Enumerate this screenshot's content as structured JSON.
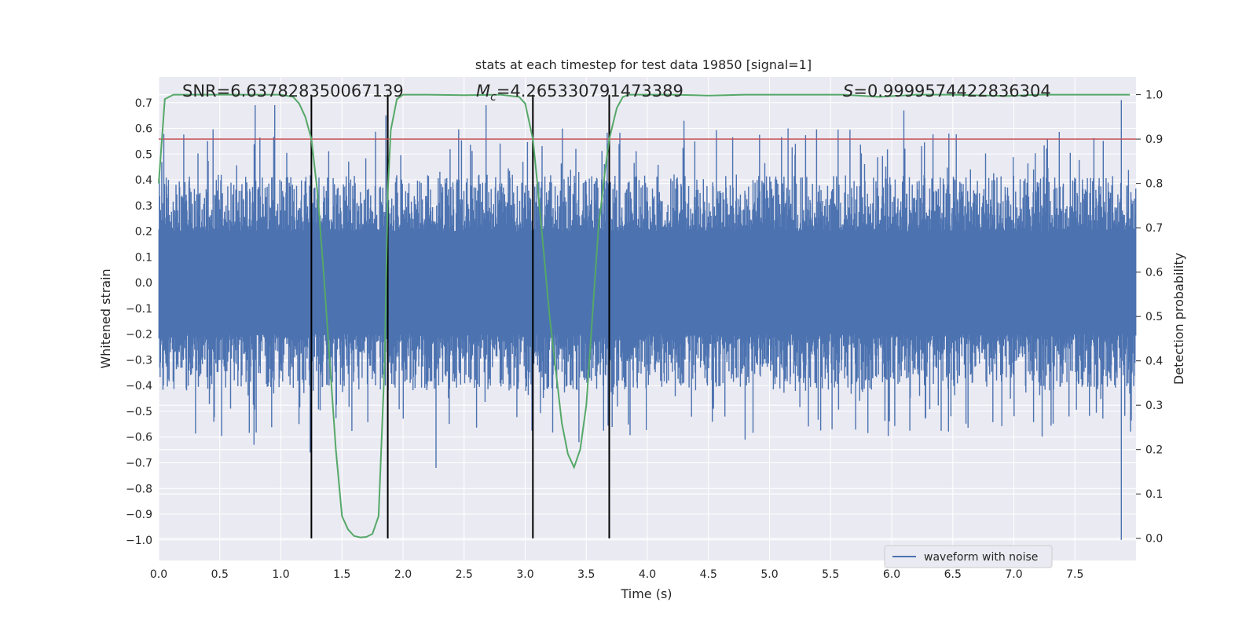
{
  "chart_data": {
    "type": "line",
    "title": "stats at each timestep for test data 19850 [signal=1]",
    "xlabel": "Time (s)",
    "ylabel": "Whitened strain",
    "y2label": "Detection probability",
    "xlim": [
      0,
      8
    ],
    "ylim": [
      -1.08,
      0.8
    ],
    "y2lim": [
      -0.05,
      1.04
    ],
    "x_ticks": [
      "0.0",
      "0.5",
      "1.0",
      "1.5",
      "2.0",
      "2.5",
      "3.0",
      "3.5",
      "4.0",
      "4.5",
      "5.0",
      "5.5",
      "6.0",
      "6.5",
      "7.0",
      "7.5"
    ],
    "y_ticks": [
      "0.7",
      "0.6",
      "0.5",
      "0.4",
      "0.3",
      "0.2",
      "0.1",
      "0.0",
      "−0.1",
      "−0.2",
      "−0.3",
      "−0.4",
      "−0.5",
      "−0.6",
      "−0.7",
      "−0.8",
      "−0.9",
      "−1.0"
    ],
    "y2_ticks": [
      "1.0",
      "0.9",
      "0.8",
      "0.7",
      "0.6",
      "0.5",
      "0.4",
      "0.3",
      "0.2",
      "0.1",
      "0.0"
    ],
    "annotations": {
      "snr": "SNR=6.637828350067139",
      "mc_symbol": "M",
      "mc_sub": "c",
      "mc_value": "=4.265330791473389",
      "s_symbol": "S",
      "s_value": "=0.9999574422836304"
    },
    "threshold": {
      "axis": "right",
      "value": 0.9,
      "color": "#c44e52"
    },
    "event_boundaries": [
      1.25,
      1.875,
      3.063,
      3.688
    ],
    "series": [
      {
        "name": "waveform with noise",
        "axis": "left",
        "color": "#4c72b0",
        "description": "dense noisy strain, bulk within about ±0.2",
        "envelope": {
          "core_high": 0.2,
          "core_low": -0.2
        },
        "notable_peaks": [
          {
            "x": 0.08,
            "y": 0.4
          },
          {
            "x": 0.4,
            "y": 0.55
          },
          {
            "x": 0.79,
            "y": 0.69
          },
          {
            "x": 0.95,
            "y": 0.69
          },
          {
            "x": 1.86,
            "y": 0.65
          },
          {
            "x": 2.68,
            "y": 0.69
          },
          {
            "x": 4.3,
            "y": 0.63
          },
          {
            "x": 6.1,
            "y": 0.67
          },
          {
            "x": 7.88,
            "y": 0.71
          }
        ],
        "notable_troughs": [
          {
            "x": 0.78,
            "y": -0.63
          },
          {
            "x": 1.24,
            "y": -0.66
          },
          {
            "x": 2.27,
            "y": -0.72
          },
          {
            "x": 3.44,
            "y": -0.62
          },
          {
            "x": 4.8,
            "y": -0.61
          },
          {
            "x": 7.88,
            "y": -1.0
          }
        ]
      },
      {
        "name": "Detection probability",
        "axis": "right",
        "color": "#55a868",
        "x": [
          0.0,
          0.05,
          0.12,
          0.2,
          0.5,
          0.8,
          1.0,
          1.1,
          1.15,
          1.2,
          1.25,
          1.3,
          1.35,
          1.4,
          1.45,
          1.5,
          1.55,
          1.6,
          1.65,
          1.7,
          1.75,
          1.8,
          1.85,
          1.875,
          1.9,
          1.95,
          2.0,
          2.2,
          2.5,
          2.8,
          2.95,
          3.0,
          3.063,
          3.1,
          3.15,
          3.2,
          3.25,
          3.3,
          3.35,
          3.4,
          3.45,
          3.5,
          3.55,
          3.6,
          3.65,
          3.688,
          3.75,
          3.8,
          3.85,
          4.0,
          4.2,
          4.5,
          4.8,
          5.2,
          5.6,
          5.9,
          6.2,
          6.5,
          6.8,
          6.95,
          7.2,
          7.5,
          7.8,
          7.95
        ],
        "y": [
          0.8,
          0.99,
          1.0,
          1.0,
          1.0,
          1.0,
          1.0,
          0.995,
          0.98,
          0.95,
          0.9,
          0.78,
          0.6,
          0.4,
          0.2,
          0.05,
          0.02,
          0.005,
          0.002,
          0.003,
          0.01,
          0.05,
          0.4,
          0.78,
          0.92,
          0.99,
          1.0,
          1.0,
          0.999,
          1.0,
          0.995,
          0.98,
          0.9,
          0.8,
          0.65,
          0.5,
          0.38,
          0.26,
          0.19,
          0.16,
          0.2,
          0.3,
          0.5,
          0.7,
          0.82,
          0.9,
          0.97,
          0.995,
          1.0,
          1.0,
          1.0,
          0.998,
          1.0,
          1.0,
          1.0,
          0.995,
          1.0,
          1.0,
          0.998,
          0.997,
          1.0,
          1.0,
          1.0,
          1.0
        ]
      }
    ],
    "legend": {
      "labels": [
        "waveform with noise"
      ],
      "placement": "lower-right"
    }
  },
  "colors": {
    "plot_bg": "#eaeaf2",
    "grid": "#ffffff",
    "axis_text": "#262626",
    "boundary": "#000000"
  }
}
